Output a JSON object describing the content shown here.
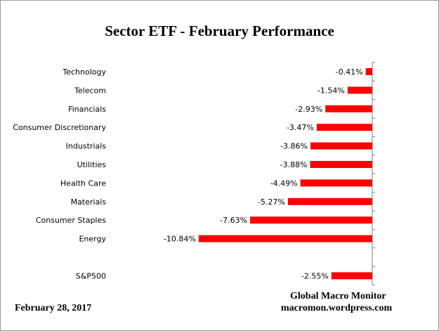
{
  "chart_data": {
    "type": "bar",
    "orientation": "horizontal",
    "title": "Sector ETF - February Performance",
    "categories": [
      "Technology",
      "Telecom",
      "Financials",
      "Consumer Discretionary",
      "Industrials",
      "Utilities",
      "Health Care",
      "Materials",
      "Consumer Staples",
      "Energy",
      "",
      "S&P500"
    ],
    "values": [
      -0.41,
      -1.54,
      -2.93,
      -3.47,
      -3.86,
      -3.88,
      -4.49,
      -5.27,
      -7.63,
      -10.84,
      null,
      -2.55
    ],
    "data_labels": [
      "-0.41%",
      "-1.54%",
      "-2.93%",
      "-3.47%",
      "-3.86%",
      "-3.88%",
      "-4.49%",
      "-5.27%",
      "-7.63%",
      "-10.84%",
      "",
      "-2.55%"
    ],
    "xlim": [
      -12,
      0
    ],
    "bar_color": "#ff0000",
    "grid": false,
    "legend": "none"
  },
  "footer": {
    "date": "February 28,  2017",
    "source_name": "Global Macro Monitor",
    "source_url": "macromon.wordpress.com"
  }
}
